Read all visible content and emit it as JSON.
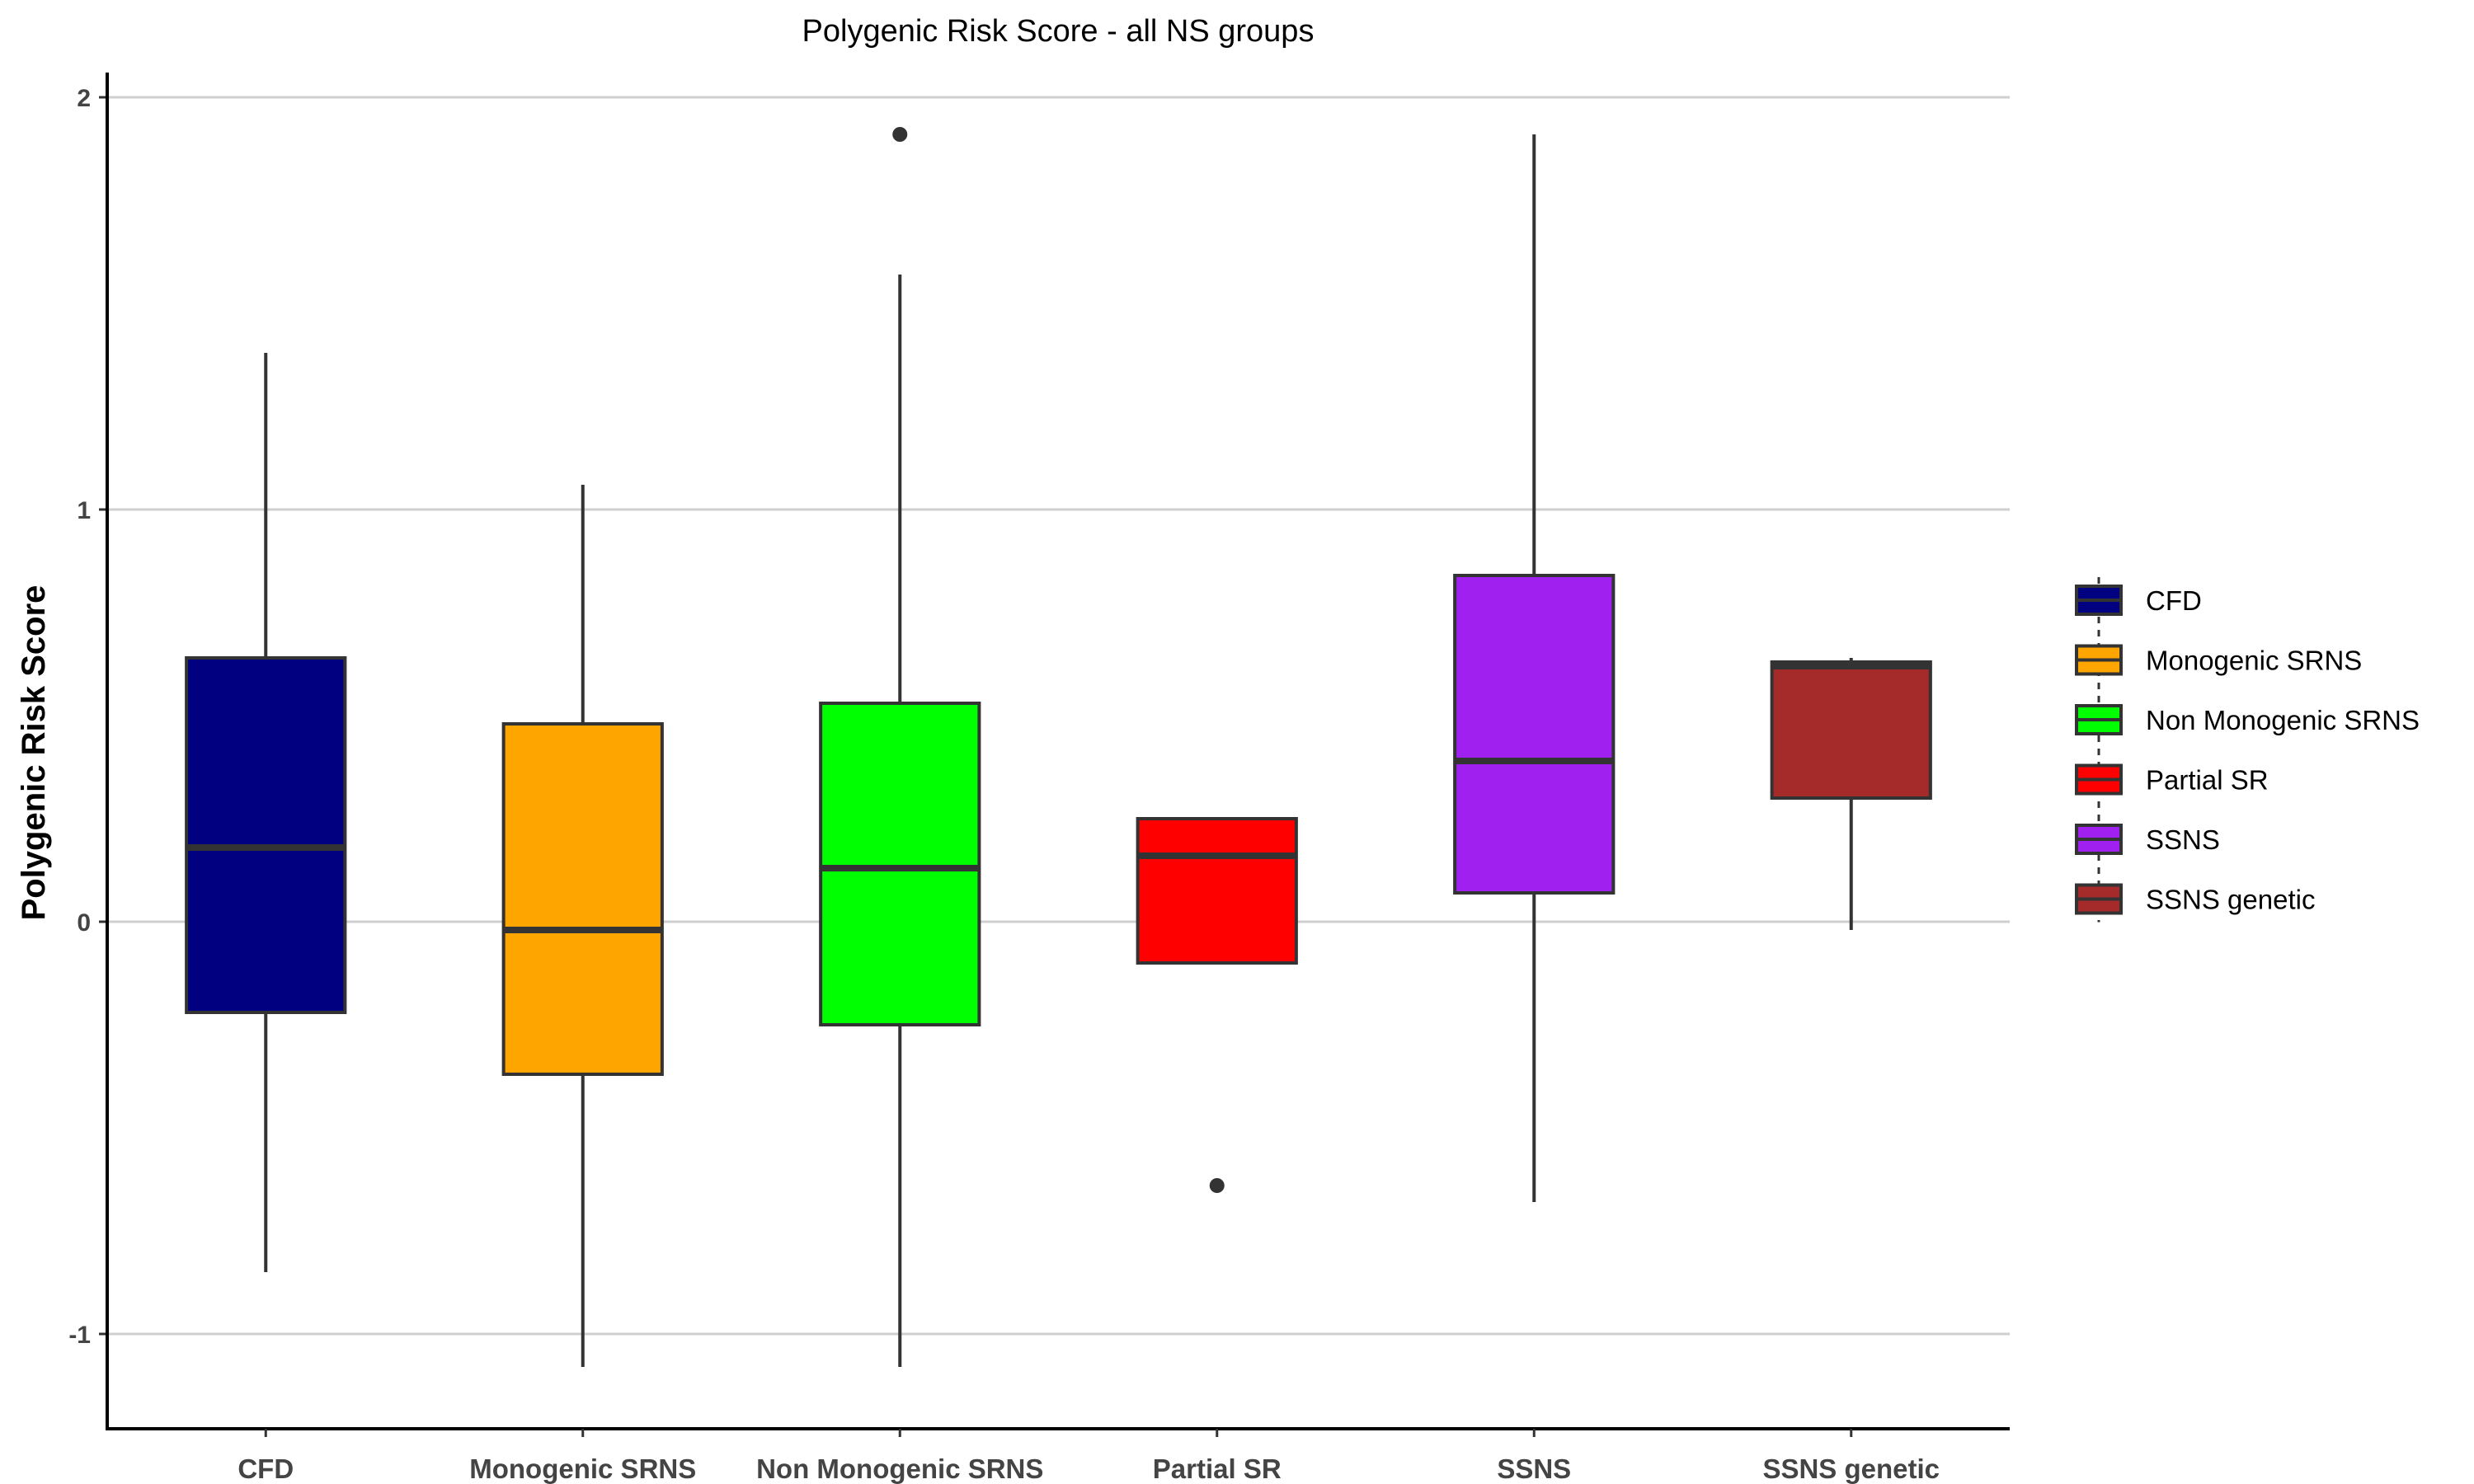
{
  "chart_data": {
    "type": "boxplot",
    "title": "Polygenic Risk Score - all NS groups",
    "xlabel": "",
    "ylabel": "Polygenic Risk Score",
    "ylim": [
      -1.23,
      2.06
    ],
    "yticks": [
      -1,
      0,
      1,
      2
    ],
    "ytick_labels": [
      "-1",
      "0",
      "1",
      "2"
    ],
    "grid": "horizontal major gridlines",
    "legend_placement": "right",
    "categories": [
      "CFD",
      "Monogenic SRNS",
      "Non Monogenic SRNS",
      "Partial SR",
      "SSNS",
      "SSNS genetic"
    ],
    "series": [
      {
        "name": "CFD",
        "color": "#000080",
        "whisker_low": -0.85,
        "q1": -0.22,
        "median": 0.18,
        "q3": 0.64,
        "whisker_high": 1.38,
        "outliers": []
      },
      {
        "name": "Monogenic SRNS",
        "color": "#FFA500",
        "whisker_low": -1.08,
        "q1": -0.37,
        "median": -0.02,
        "q3": 0.48,
        "whisker_high": 1.06,
        "outliers": []
      },
      {
        "name": "Non Monogenic SRNS",
        "color": "#00FF00",
        "whisker_low": -1.08,
        "q1": -0.25,
        "median": 0.13,
        "q3": 0.53,
        "whisker_high": 1.57,
        "outliers": [
          1.91
        ]
      },
      {
        "name": "Partial SR",
        "color": "#FF0000",
        "whisker_low": -0.1,
        "q1": -0.1,
        "median": 0.16,
        "q3": 0.25,
        "whisker_high": 0.25,
        "outliers": [
          -0.64
        ]
      },
      {
        "name": "SSNS",
        "color": "#A020F0",
        "whisker_low": -0.68,
        "q1": 0.07,
        "median": 0.39,
        "q3": 0.84,
        "whisker_high": 1.91,
        "outliers": []
      },
      {
        "name": "SSNS genetic",
        "color": "#A52A2A",
        "whisker_low": -0.02,
        "q1": 0.3,
        "median": 0.62,
        "q3": 0.63,
        "whisker_high": 0.64,
        "outliers": []
      }
    ]
  }
}
